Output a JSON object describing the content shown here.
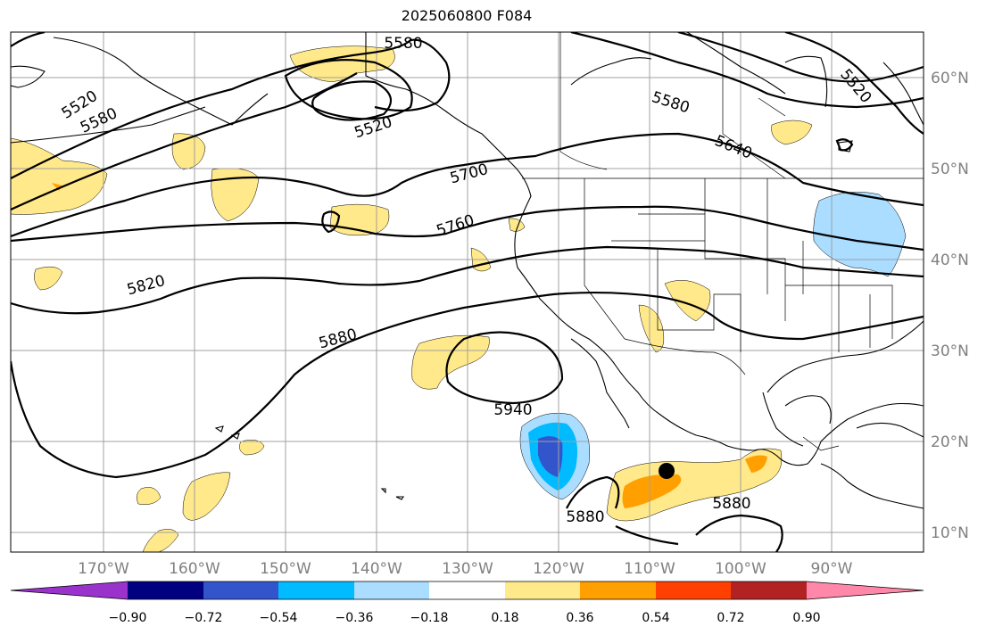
{
  "title": "2025060800 F084",
  "lat_labels": [
    "60°N",
    "50°N",
    "40°N",
    "30°N",
    "20°N",
    "10°N"
  ],
  "lon_labels": [
    "170°W",
    "160°W",
    "150°W",
    "140°W",
    "130°W",
    "120°W",
    "110°W",
    "100°W",
    "90°W"
  ],
  "contour_labels": [
    "5580",
    "5520",
    "5580",
    "5520",
    "5580",
    "5520",
    "5640",
    "5700",
    "5760",
    "5820",
    "5880",
    "5940",
    "5880",
    "5880"
  ],
  "colorbar": {
    "tick_labels": [
      "−0.90",
      "−0.72",
      "−0.54",
      "−0.36",
      "−0.18",
      "0.18",
      "0.36",
      "0.54",
      "0.72",
      "0.90"
    ],
    "colors": [
      "#9933cc",
      "#000080",
      "#3355cc",
      "#00bbff",
      "#aaddff",
      "#ffffff",
      "#ffe98a",
      "#ffa000",
      "#ff4000",
      "#b22222",
      "#ff88aa"
    ]
  },
  "marker": {
    "label": "storm-center",
    "color": "#000000"
  }
}
